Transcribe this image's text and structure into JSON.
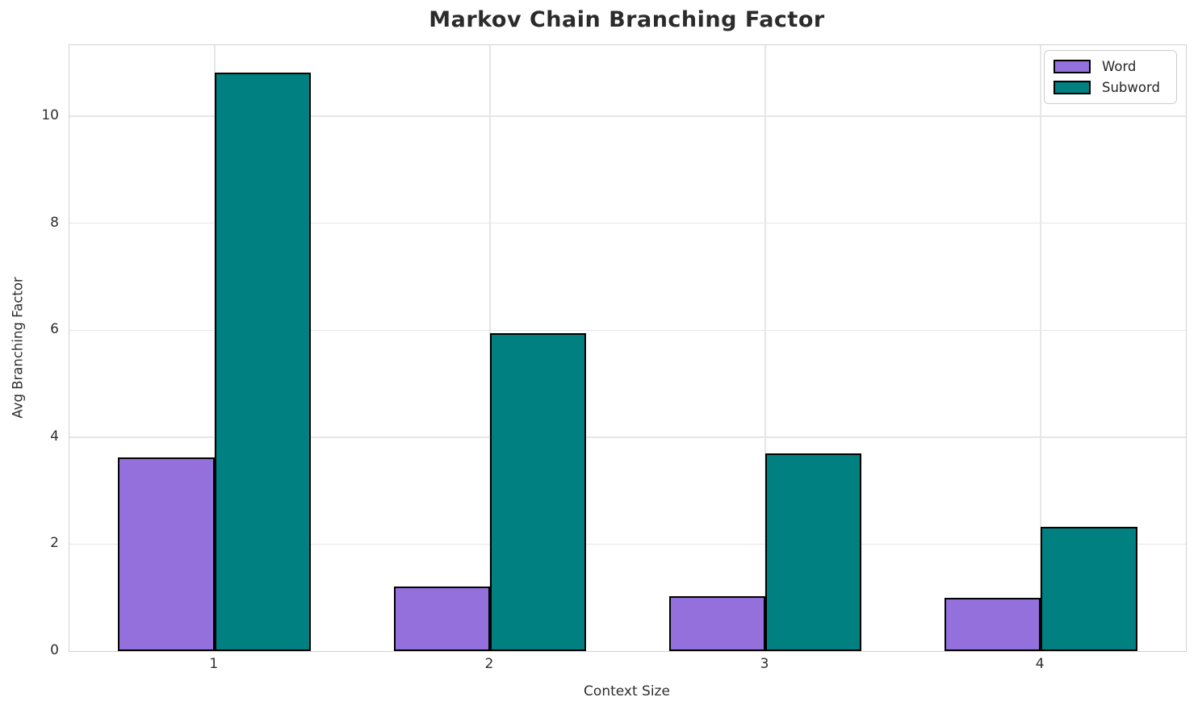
{
  "title": "Markov Chain Branching Factor",
  "chart_data": {
    "type": "bar",
    "title": "Markov Chain Branching Factor",
    "xlabel": "Context Size",
    "ylabel": "Avg Branching Factor",
    "categories": [
      "1",
      "2",
      "3",
      "4"
    ],
    "series": [
      {
        "name": "Word",
        "color": "#9370DB",
        "values": [
          3.62,
          1.21,
          1.03,
          1.0
        ]
      },
      {
        "name": "Subword",
        "color": "#008080",
        "values": [
          10.81,
          5.94,
          3.69,
          2.33
        ]
      }
    ],
    "yticks": [
      0,
      2,
      4,
      6,
      8,
      10
    ],
    "ylim": [
      0,
      11.33
    ],
    "xlim": [
      0.473,
      4.527
    ],
    "bar_width_units": 0.35,
    "grid": true,
    "legend_position": "upper right",
    "bar_edge_color": "#000000"
  }
}
